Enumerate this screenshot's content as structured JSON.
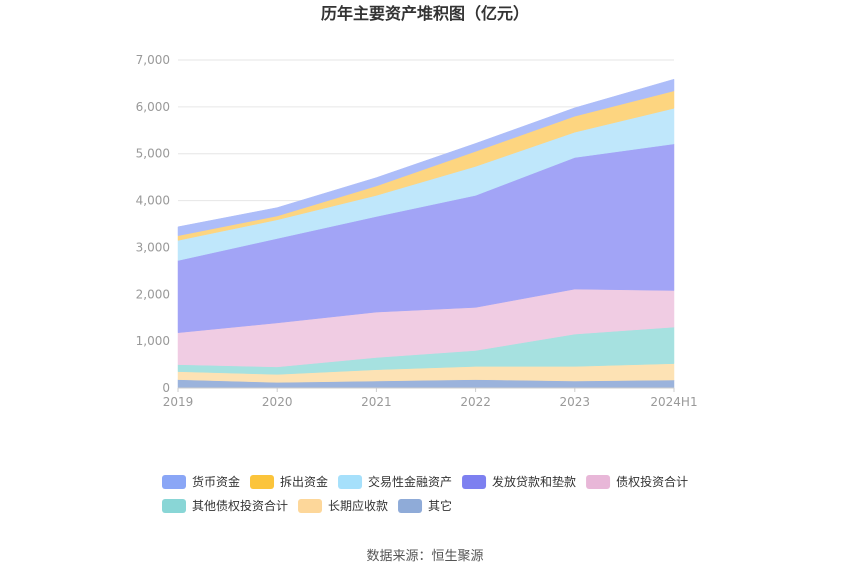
{
  "chart_data": {
    "type": "area",
    "stacked": true,
    "title": "历年主要资产堆积图（亿元）",
    "categories": [
      "2019",
      "2020",
      "2021",
      "2022",
      "2023",
      "2024H1"
    ],
    "ylim": [
      0,
      7000
    ],
    "yticks": [
      0,
      1000,
      2000,
      3000,
      4000,
      5000,
      6000,
      7000
    ],
    "ytick_labels": [
      "0",
      "1,000",
      "2,000",
      "3,000",
      "4,000",
      "5,000",
      "6,000",
      "7,000"
    ],
    "grid": true,
    "legend_position": "bottom",
    "series": [
      {
        "name": "其它",
        "color": "#9bb3dc",
        "values": [
          180,
          120,
          150,
          180,
          150,
          170
        ]
      },
      {
        "name": "长期应收款",
        "color": "#fde2b4",
        "values": [
          170,
          170,
          240,
          280,
          310,
          350
        ]
      },
      {
        "name": "其他债权投资合计",
        "color": "#a6e1e0",
        "values": [
          150,
          160,
          260,
          340,
          690,
          780
        ]
      },
      {
        "name": "债权投资合计",
        "color": "#f0cce3",
        "values": [
          680,
          940,
          970,
          920,
          960,
          780
        ]
      },
      {
        "name": "发放贷款和垫款",
        "color": "#a2a4f6",
        "values": [
          1540,
          1800,
          2040,
          2390,
          2810,
          3130
        ]
      },
      {
        "name": "交易性金融资产",
        "color": "#bfe7fb",
        "values": [
          430,
          400,
          450,
          620,
          540,
          760
        ]
      },
      {
        "name": "拆出资金",
        "color": "#fdd580",
        "values": [
          100,
          80,
          200,
          320,
          340,
          370
        ]
      },
      {
        "name": "货币资金",
        "color": "#adbdf9",
        "values": [
          190,
          180,
          180,
          170,
          180,
          250
        ]
      }
    ],
    "legend": [
      {
        "name": "货币资金",
        "color": "#8aa6f6"
      },
      {
        "name": "拆出资金",
        "color": "#fbc43b"
      },
      {
        "name": "交易性金融资产",
        "color": "#a6e0fb"
      },
      {
        "name": "发放贷款和垫款",
        "color": "#7d80f0"
      },
      {
        "name": "债权投资合计",
        "color": "#e8b7d8"
      },
      {
        "name": "其他债权投资合计",
        "color": "#89d6d6"
      },
      {
        "name": "长期应收款",
        "color": "#fdd79a"
      },
      {
        "name": "其它",
        "color": "#8fabd8"
      }
    ],
    "source": "数据来源：恒生聚源"
  }
}
